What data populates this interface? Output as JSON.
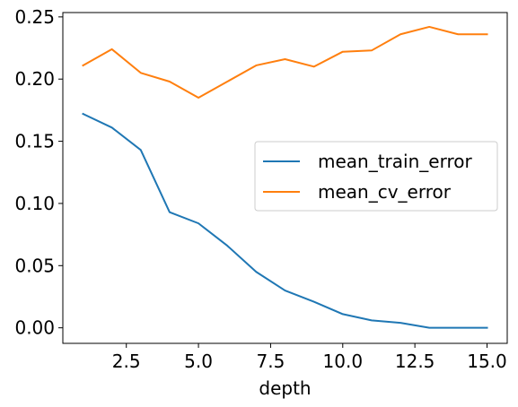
{
  "chart_data": {
    "type": "line",
    "title": "",
    "xlabel": "depth",
    "ylabel": "",
    "xlim": [
      0.3,
      15.7
    ],
    "ylim": [
      -0.0125,
      0.2535
    ],
    "grid": false,
    "legend_position": "center-right",
    "x_ticks": [
      2.5,
      5.0,
      7.5,
      10.0,
      12.5,
      15.0
    ],
    "x_tick_labels": [
      "2.5",
      "5.0",
      "7.5",
      "10.0",
      "12.5",
      "15.0"
    ],
    "y_ticks": [
      0.0,
      0.05,
      0.1,
      0.15,
      0.2,
      0.25
    ],
    "y_tick_labels": [
      "0.00",
      "0.05",
      "0.10",
      "0.15",
      "0.20",
      "0.25"
    ],
    "x": [
      1,
      2,
      3,
      4,
      5,
      6,
      7,
      8,
      9,
      10,
      11,
      12,
      13,
      14,
      15
    ],
    "series": [
      {
        "name": "mean_train_error",
        "color": "#1f77b4",
        "values": [
          0.172,
          0.161,
          0.143,
          0.093,
          0.084,
          0.066,
          0.045,
          0.03,
          0.021,
          0.011,
          0.006,
          0.004,
          0.0,
          0.0,
          0.0
        ]
      },
      {
        "name": "mean_cv_error",
        "color": "#ff7f0e",
        "values": [
          0.211,
          0.224,
          0.205,
          0.198,
          0.185,
          0.198,
          0.211,
          0.216,
          0.21,
          0.222,
          0.223,
          0.236,
          0.242,
          0.236,
          0.236
        ]
      }
    ]
  }
}
